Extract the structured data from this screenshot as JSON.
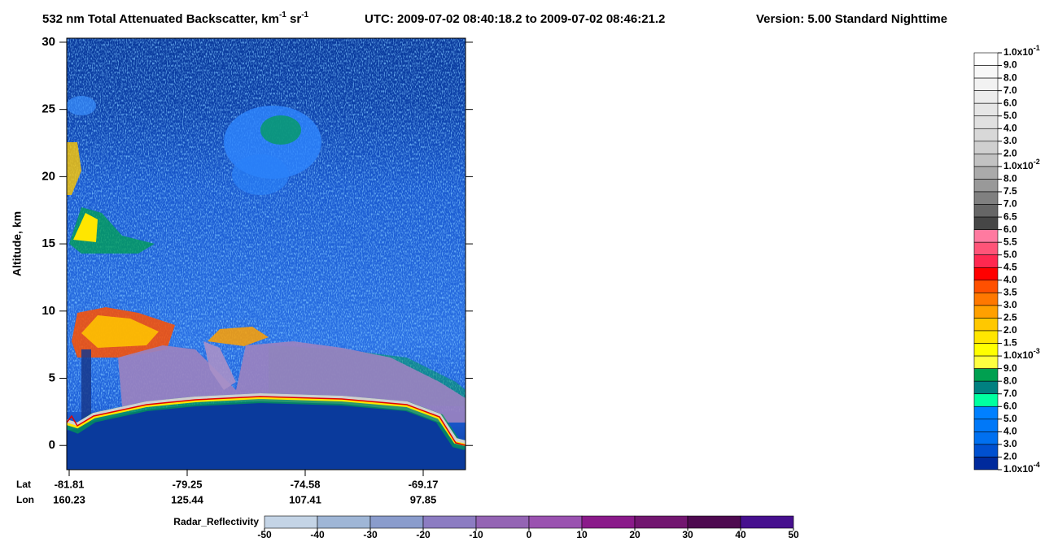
{
  "chart_data": {
    "type": "curtain",
    "title_parts": [
      "532 nm Total Attenuated Backscatter, km",
      "-1",
      " sr",
      "-1"
    ],
    "utc": "UTC:  2009-07-02 08:40:18.2  to  2009-07-02 08:46:21.2",
    "version": "Version: 5.00  Standard  Nighttime",
    "ylabel": "Altitude, km",
    "ylim": [
      -1.8,
      30.3
    ],
    "yticks": [
      0,
      5,
      10,
      15,
      20,
      25,
      30
    ],
    "x_rows": {
      "lat": "Lat",
      "lon": "Lon"
    },
    "x_ticks": [
      {
        "lat": "-81.81",
        "lon": "160.23"
      },
      {
        "lat": "-79.25",
        "lon": "125.44"
      },
      {
        "lat": "-74.58",
        "lon": "107.41"
      },
      {
        "lat": "-69.17",
        "lon": "97.85"
      }
    ],
    "colorbar": {
      "labels": [
        {
          "base": "1.0x10",
          "exp": "-1"
        },
        "9.0",
        "8.0",
        "7.0",
        "6.0",
        "5.0",
        "4.0",
        "3.0",
        "2.0",
        {
          "base": "1.0x10",
          "exp": "-2"
        },
        "8.0",
        "7.5",
        "7.0",
        "6.5",
        "6.0",
        "5.5",
        "5.0",
        "4.5",
        "4.0",
        "3.5",
        "3.0",
        "2.5",
        "2.0",
        "1.5",
        {
          "base": "1.0x10",
          "exp": "-3"
        },
        "9.0",
        "8.0",
        "7.0",
        "6.0",
        "5.0",
        "4.0",
        "3.0",
        "2.0",
        {
          "base": "1.0x10",
          "exp": "-4"
        }
      ],
      "colors": [
        "#ffffff",
        "#f8f8f8",
        "#f2f2f2",
        "#ececec",
        "#e6e6e6",
        "#e0e0e0",
        "#d8d8d8",
        "#cfcfcf",
        "#c2c2c2",
        "#aaaaaa",
        "#999999",
        "#808080",
        "#666666",
        "#464646",
        "#ff7aa0",
        "#ff5478",
        "#ff2850",
        "#ff0000",
        "#ff5000",
        "#ff7800",
        "#ffa000",
        "#ffc800",
        "#ffe600",
        "#ffff00",
        "#ffff40",
        "#00a050",
        "#008080",
        "#00ffa0",
        "#0080ff",
        "#0078f8",
        "#0070f0",
        "#0050d0",
        "#002a9c"
      ]
    },
    "radar_colorbar": {
      "label": "Radar_Reflectivity",
      "xlim": [
        -50,
        50
      ],
      "xticks": [
        -50,
        -40,
        -30,
        -20,
        -10,
        0,
        10,
        20,
        30,
        40,
        50
      ],
      "colors": [
        "#c4d4e6",
        "#9fb6d6",
        "#8a9ccc",
        "#8c7cc2",
        "#9464b4",
        "#9a52b0",
        "#8a1a8a",
        "#721670",
        "#4e0a50",
        "#46108e"
      ]
    }
  }
}
